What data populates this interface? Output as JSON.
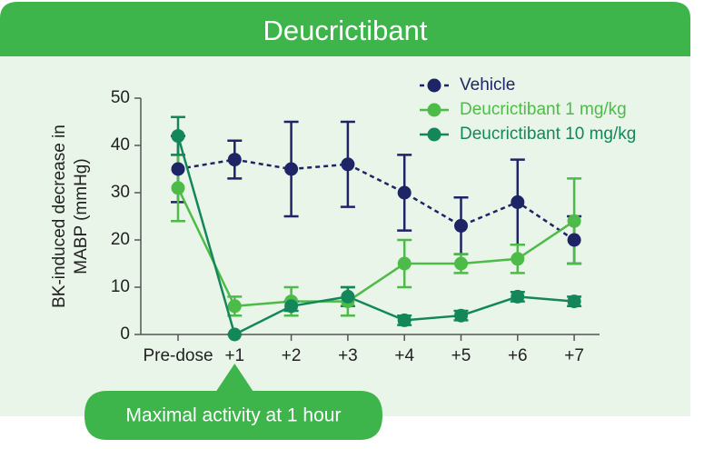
{
  "chart_data": {
    "type": "line",
    "title": "Deucrictibant",
    "y_label": [
      "BK-induced decrease in",
      "MABP (mmHg)"
    ],
    "annotation": "Maximal activity at 1 hour",
    "annotation_category": 1,
    "categories": [
      "Pre-dose",
      "+1",
      "+2",
      "+3",
      "+4",
      "+5",
      "+6",
      "+7"
    ],
    "series": [
      {
        "name": "Vehicle",
        "color": "#1e2566",
        "dashed": true,
        "values": [
          35,
          37,
          35,
          36,
          30,
          23,
          28,
          20
        ],
        "errors": [
          7,
          4,
          10,
          9,
          8,
          6,
          9,
          5
        ]
      },
      {
        "name": "Deucrictibant 1 mg/kg",
        "color": "#4dbb48",
        "dashed": false,
        "values": [
          31,
          6,
          7,
          7,
          15,
          15,
          16,
          24
        ],
        "errors": [
          7,
          2,
          3,
          3,
          5,
          2,
          3,
          9
        ]
      },
      {
        "name": "Deucrictibant 10 mg/kg",
        "color": "#14875a",
        "dashed": false,
        "values": [
          42,
          0,
          6,
          8,
          3,
          4,
          8,
          7
        ],
        "errors": [
          4,
          0,
          1,
          2,
          1,
          1,
          1,
          1
        ]
      }
    ],
    "ylim": [
      0,
      50
    ],
    "yticks": [
      0,
      10,
      20,
      30,
      40,
      50
    ],
    "legend": "top-right",
    "grid": false
  }
}
